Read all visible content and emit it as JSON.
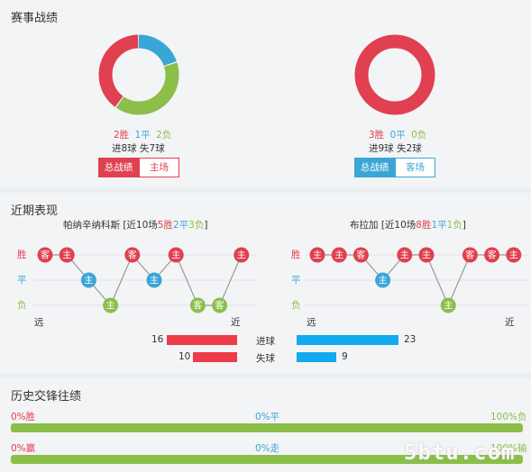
{
  "record": {
    "title": "赛事战绩",
    "left": {
      "win": "2胜",
      "draw": "1平",
      "loss": "2负",
      "goals": "进8球  失7球",
      "donut": {
        "win": 2,
        "draw": 1,
        "loss": 2
      },
      "tabs": [
        "总战绩",
        "主场"
      ]
    },
    "right": {
      "win": "3胜",
      "draw": "0平",
      "loss": "0负",
      "goals": "进9球  失2球",
      "donut": {
        "win": 3,
        "draw": 0,
        "loss": 0
      },
      "tabs": [
        "总战绩",
        "客场"
      ]
    }
  },
  "recent": {
    "title": "近期表现",
    "left_team": {
      "name": "帕纳辛纳科斯 [近10场",
      "w": "5胜",
      "d": "2平",
      "l": "3负",
      "close": "]",
      "matches": [
        {
          "r": "W",
          "v": "客"
        },
        {
          "r": "W",
          "v": "主"
        },
        {
          "r": "D",
          "v": "主"
        },
        {
          "r": "L",
          "v": "主"
        },
        {
          "r": "W",
          "v": "客"
        },
        {
          "r": "D",
          "v": "主"
        },
        {
          "r": "W",
          "v": "主"
        },
        {
          "r": "L",
          "v": "客"
        },
        {
          "r": "L",
          "v": "客"
        },
        {
          "r": "W",
          "v": "主"
        }
      ]
    },
    "right_team": {
      "name": "布拉加 [近10场",
      "w": "8胜",
      "d": "1平",
      "l": "1负",
      "close": "]",
      "matches": [
        {
          "r": "W",
          "v": "主"
        },
        {
          "r": "W",
          "v": "主"
        },
        {
          "r": "W",
          "v": "客"
        },
        {
          "r": "D",
          "v": "主"
        },
        {
          "r": "W",
          "v": "主"
        },
        {
          "r": "W",
          "v": "主"
        },
        {
          "r": "L",
          "v": "主"
        },
        {
          "r": "W",
          "v": "客"
        },
        {
          "r": "W",
          "v": "客"
        },
        {
          "r": "W",
          "v": "主"
        }
      ]
    },
    "row_labels": {
      "win": "胜",
      "draw": "平",
      "loss": "负"
    },
    "far": "远",
    "near": "近",
    "stats": [
      {
        "label": "进球",
        "left": 16,
        "right": 23
      },
      {
        "label": "失球",
        "left": 10,
        "right": 9
      }
    ]
  },
  "history": {
    "title": "历史交锋往绩",
    "row1": {
      "left": "0%胜",
      "mid": "0%平",
      "right": "100%负",
      "fill": 1.0
    },
    "row2": {
      "left": "0%赢",
      "mid": "0%走",
      "right": "100%输",
      "fill": 1.0
    }
  },
  "watermark": "5btu.com",
  "colors": {
    "win": "#e0404f",
    "draw": "#3aa6d6",
    "loss": "#8bbf4a",
    "bar_left": "#ee3b49",
    "bar_right": "#11aaee"
  }
}
